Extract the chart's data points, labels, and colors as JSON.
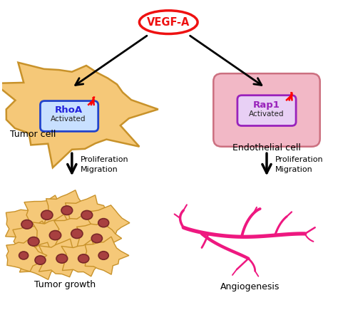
{
  "background_color": "#ffffff",
  "vegfa_label": "VEGF-A",
  "vegfa_color": "#ee1111",
  "rhoa_label": "RhoA",
  "rhoa_color": "#2222dd",
  "rap1_label": "Rap1",
  "rap1_color": "#9922bb",
  "tumor_cell_label": "Tumor cell",
  "endo_cell_label": "Endothelial cell",
  "activated_label": "Activated",
  "prolif_migration": "Proliferation\nMigration",
  "tumor_growth_label": "Tumor growth",
  "angio_label": "Angiogenesis",
  "cell_fill": "#f5c878",
  "cell_edge": "#c8922a",
  "nucleus_fill": "#a84040",
  "nucleus_edge": "#7a2828",
  "endo_box_fill": "#f2b8c6",
  "endo_box_edge": "#cc7080",
  "rhoa_box_fill": "#c8e0ff",
  "rhoa_box_edge": "#2244cc",
  "rap1_box_fill": "#e8d0f5",
  "rap1_box_edge": "#9922bb",
  "arrow_color": "#111111",
  "angio_color": "#ee1880",
  "figsize": [
    4.74,
    4.42
  ],
  "dpi": 100
}
